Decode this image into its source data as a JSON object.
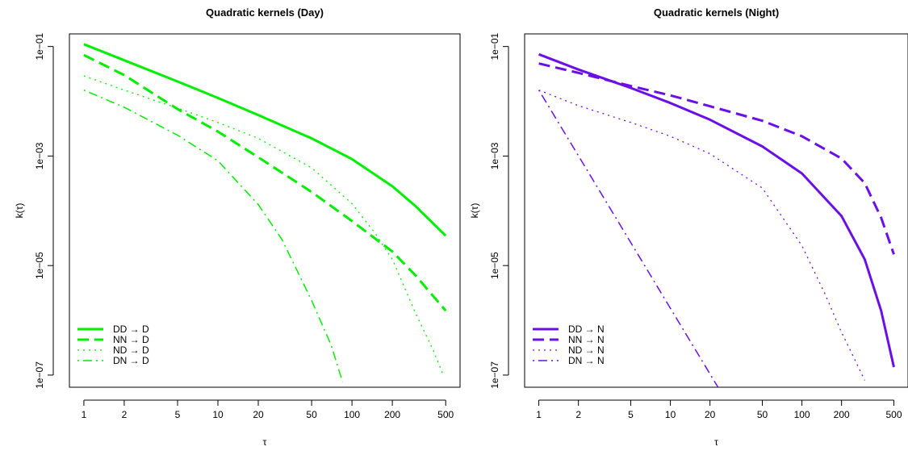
{
  "chart_data": [
    {
      "type": "line",
      "title": "Quadratic kernels (Day)",
      "xlabel": "τ",
      "ylabel": "k(τ)",
      "xscale": "log",
      "yscale": "log",
      "xlim": [
        0.78,
        640
      ],
      "ylim": [
        6e-08,
        0.17
      ],
      "xticks": [
        1,
        2,
        5,
        10,
        20,
        50,
        100,
        200,
        500
      ],
      "xtick_labels": [
        "1",
        "2",
        "5",
        "10",
        "20",
        "50",
        "100",
        "200",
        "500"
      ],
      "yticks": [
        1e-07,
        1e-05,
        0.001,
        0.1
      ],
      "ytick_labels": [
        "1e−07",
        "1e−05",
        "1e−03",
        "1e−01"
      ],
      "grid": false,
      "legend_position": "bottom-left",
      "color": "#00ee00",
      "series": [
        {
          "name": "DD → D",
          "dash": "solid",
          "x": [
            1,
            2,
            5,
            10,
            20,
            50,
            100,
            200,
            300,
            500
          ],
          "y": [
            0.11,
            0.056,
            0.023,
            0.0115,
            0.0056,
            0.0021,
            0.00088,
            0.00028,
            0.00012,
            3.5e-05
          ]
        },
        {
          "name": "NN → D",
          "dash": "dashed",
          "x": [
            1,
            2,
            3,
            5,
            10,
            20,
            50,
            100,
            200,
            300,
            500
          ],
          "y": [
            0.07,
            0.03,
            0.016,
            0.0072,
            0.0028,
            0.00095,
            0.00022,
            6.5e-05,
            1.8e-05,
            6.5e-06,
            1.5e-06
          ]
        },
        {
          "name": "ND → D",
          "dash": "dotted",
          "x": [
            1,
            2,
            5,
            10,
            20,
            50,
            100,
            150,
            200,
            300,
            400,
            480
          ],
          "y": [
            0.029,
            0.016,
            0.0075,
            0.0041,
            0.0021,
            0.00061,
            0.000135,
            3.8e-05,
            1.3e-05,
            1.3e-06,
            3e-07,
            1e-07
          ]
        },
        {
          "name": "DN → D",
          "dash": "dotdash",
          "x": [
            1,
            2,
            5,
            10,
            20,
            30,
            50,
            70,
            85
          ],
          "y": [
            0.016,
            0.0078,
            0.0024,
            0.00082,
            0.00013,
            3e-05,
            2.3e-06,
            3.5e-07,
            7.5e-08
          ]
        }
      ]
    },
    {
      "type": "line",
      "title": "Quadratic kernels (Night)",
      "xlabel": "τ",
      "ylabel": "k(τ)",
      "xscale": "log",
      "yscale": "log",
      "xlim": [
        0.78,
        640
      ],
      "ylim": [
        6e-08,
        0.17
      ],
      "xticks": [
        1,
        2,
        5,
        10,
        20,
        50,
        100,
        200,
        500
      ],
      "xtick_labels": [
        "1",
        "2",
        "5",
        "10",
        "20",
        "50",
        "100",
        "200",
        "500"
      ],
      "yticks": [
        1e-07,
        1e-05,
        0.001,
        0.1
      ],
      "ytick_labels": [
        "1e−07",
        "1e−05",
        "1e−03",
        "1e−01"
      ],
      "grid": false,
      "legend_position": "bottom-left",
      "color": "#6a0fe6",
      "series": [
        {
          "name": "DD → N",
          "dash": "solid",
          "x": [
            1,
            2,
            5,
            10,
            20,
            50,
            100,
            200,
            300,
            400,
            500
          ],
          "y": [
            0.072,
            0.038,
            0.0175,
            0.0093,
            0.0046,
            0.0015,
            0.00048,
            8e-05,
            1.3e-05,
            1.5e-06,
            1.4e-07
          ]
        },
        {
          "name": "NN → N",
          "dash": "dashed",
          "x": [
            1,
            2,
            5,
            10,
            20,
            50,
            100,
            200,
            300,
            400,
            500
          ],
          "y": [
            0.049,
            0.033,
            0.019,
            0.0128,
            0.0081,
            0.0044,
            0.0023,
            0.0009,
            0.00032,
            7.5e-05,
            1.6e-05
          ]
        },
        {
          "name": "ND → N",
          "dash": "dotted",
          "x": [
            1,
            2,
            5,
            10,
            20,
            50,
            100,
            150,
            200,
            250,
            300
          ],
          "y": [
            0.016,
            0.0083,
            0.0041,
            0.0023,
            0.0011,
            0.00026,
            2.3e-05,
            3e-06,
            6e-07,
            2e-07,
            8e-08
          ]
        },
        {
          "name": "DN → N",
          "dash": "dotdash",
          "x": [
            1,
            23
          ],
          "y": [
            0.016,
            6e-08
          ]
        }
      ]
    }
  ]
}
